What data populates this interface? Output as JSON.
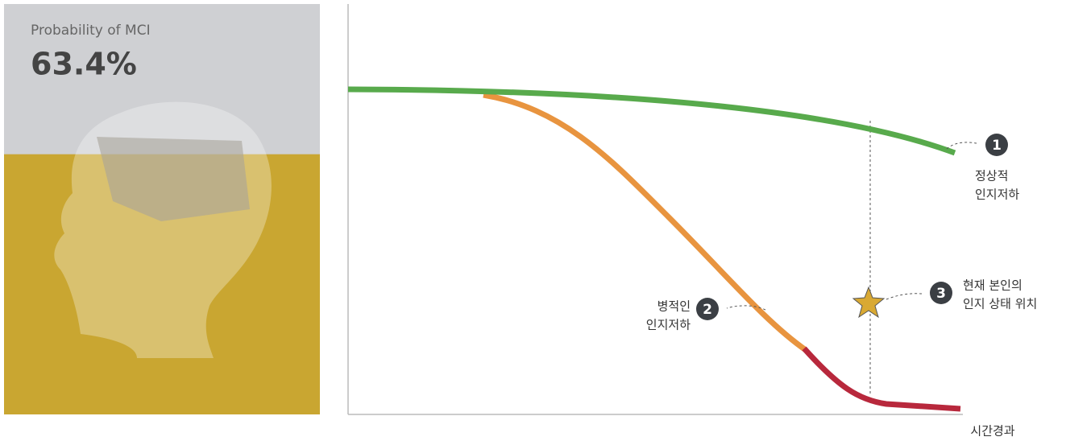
{
  "panel": {
    "title": "Probability of MCI",
    "probability": {
      "value": 63.4,
      "label": "63.4%"
    }
  },
  "diagram": {
    "markers": [
      {
        "number": "1",
        "label": [
          "정상적",
          "인지저하"
        ]
      },
      {
        "number": "2",
        "label": [
          "병적인",
          "인지저하"
        ]
      },
      {
        "number": "3",
        "label": [
          "현재 본인의",
          "인지 상태 위치"
        ]
      }
    ],
    "x_axis_label": "시간경과"
  }
}
